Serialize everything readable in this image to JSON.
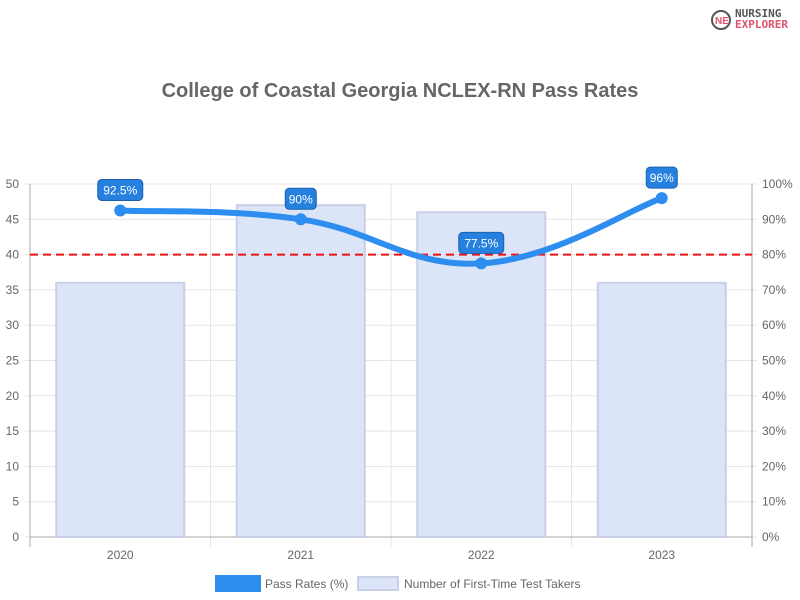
{
  "logo": {
    "line1": "NURSING",
    "line2": "EXPLORER"
  },
  "chart_data": {
    "type": "bar+line",
    "title": "College of Coastal Georgia NCLEX-RN Pass Rates",
    "categories": [
      "2020",
      "2021",
      "2022",
      "2023"
    ],
    "series": [
      {
        "name": "Pass Rates (%)",
        "type": "line",
        "axis": "right",
        "values": [
          92.5,
          90,
          77.5,
          96
        ],
        "labels": [
          "92.5%",
          "90%",
          "77.5%",
          "96%"
        ],
        "color": "#2e8ef0"
      },
      {
        "name": "Number of First-Time Test Takers",
        "type": "bar",
        "axis": "left",
        "values": [
          36,
          47,
          46,
          36
        ],
        "color": "#dce5f7"
      }
    ],
    "left_axis": {
      "ylim": [
        0,
        50
      ],
      "ticks": [
        "0",
        "5",
        "10",
        "15",
        "20",
        "25",
        "30",
        "35",
        "40",
        "45",
        "50"
      ]
    },
    "right_axis": {
      "ylim": [
        0,
        100
      ],
      "ticks": [
        "0%",
        "10%",
        "20%",
        "30%",
        "40%",
        "50%",
        "60%",
        "70%",
        "80%",
        "90%",
        "100%"
      ]
    },
    "reference_line": {
      "value": 80,
      "axis": "right",
      "color": "#ee1111",
      "style": "dashed"
    },
    "grid": true,
    "legend": "bottom"
  }
}
